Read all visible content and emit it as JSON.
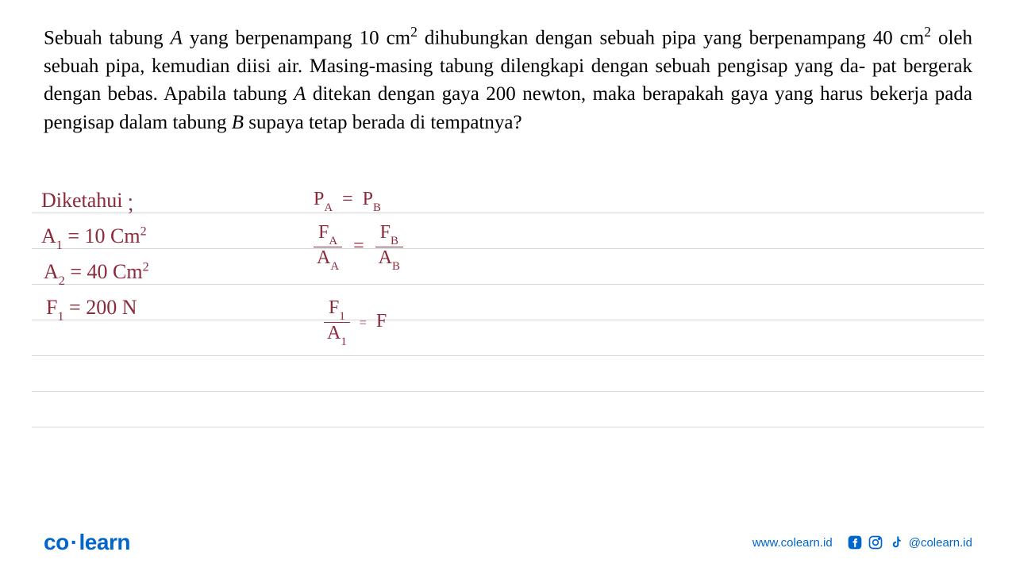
{
  "problem": {
    "text_html": "Sebuah tabung <i>A</i> yang berpenampang 10 cm<sup>2</sup> dihubungkan dengan sebuah pipa yang berpenampang 40 cm<sup>2</sup> oleh sebuah pipa, kemudian diisi air. Masing-masing tabung dilengkapi dengan sebuah pengisap yang da- pat bergerak dengan bebas. Apabila tabung <i>A</i> ditekan dengan gaya 200 newton, maka berapakah gaya yang harus bekerja pada pengisap dalam tabung <i>B</i> supaya tetap berada di tempatnya?",
    "font_size": 25,
    "color": "#000000"
  },
  "handwriting": {
    "color": "#8b2a3a",
    "font_size": 26,
    "lines_y": [
      268,
      313,
      358,
      403,
      448,
      493,
      538
    ],
    "left_column": {
      "diketahui": "Diketahui :",
      "a1": "A₁ = 10 Cm²",
      "a2": "A₂ = 40 Cm²",
      "f1": "F₁ = 200 N"
    },
    "right_column": {
      "pa_pb": "Pₐ = P_B",
      "fa_fb_num_left": "Fₐ",
      "fa_fb_den_left": "Aₐ",
      "fa_fb_num_right": "F_B",
      "fa_fb_den_right": "A_B",
      "f1_num": "F₁",
      "f1_den": "A₁",
      "f_right": "F"
    }
  },
  "footer": {
    "logo_text_1": "co",
    "logo_text_2": "learn",
    "url": "www.colearn.id",
    "handle": "@colearn.id",
    "brand_color": "#0066cc"
  }
}
